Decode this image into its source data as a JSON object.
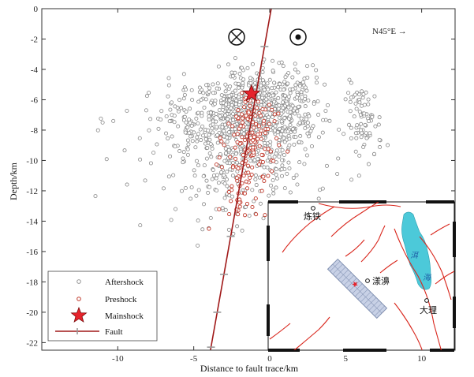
{
  "chart_data": {
    "type": "scatter",
    "xlabel": "Distance to fault trace/km",
    "ylabel": "Depth/km",
    "xlim": [
      -15,
      12.2
    ],
    "ylim": [
      -22.5,
      0
    ],
    "x_ticks": [
      -10,
      -5,
      0,
      5,
      10
    ],
    "x_tick_labels": [
      "-10",
      "-5",
      "0",
      "5",
      "10"
    ],
    "y_ticks": [
      0,
      -2,
      -4,
      -6,
      -8,
      -10,
      -12,
      -14,
      -16,
      -18,
      -20,
      -22
    ],
    "y_tick_labels": [
      "0",
      "-2",
      "-4",
      "-6",
      "-8",
      "-10",
      "-12",
      "-14",
      "-16",
      "-18",
      "-20",
      "-22"
    ],
    "direction_label": "N45°E →",
    "legend": {
      "position": "bottom-left",
      "entries": [
        "Aftershock",
        "Preshock",
        "Mainshock",
        "Fault"
      ]
    },
    "mainshock": {
      "x": -1.2,
      "y": -5.6
    },
    "fault_line": {
      "x": [
        0.1,
        -3.9
      ],
      "y": [
        0,
        -22.5
      ]
    },
    "fault_ticks_y": [
      -2.5,
      -15,
      -17.5,
      -20,
      -22.3
    ],
    "aftershock_clusters": [
      {
        "cx": -1.0,
        "cy": -7.5,
        "sx": 2.0,
        "sy": 1.7,
        "n": 620
      },
      {
        "cx": -2.5,
        "cy": -7.0,
        "sx": 1.2,
        "sy": 1.0,
        "n": 160
      },
      {
        "cx": 0.5,
        "cy": -6.2,
        "sx": 1.4,
        "sy": 1.2,
        "n": 160
      },
      {
        "cx": -5.8,
        "cy": -7.2,
        "sx": 1.2,
        "sy": 1.2,
        "n": 70
      },
      {
        "cx": 6.2,
        "cy": -7.6,
        "sx": 0.6,
        "sy": 1.3,
        "n": 80
      },
      {
        "cx": -2.2,
        "cy": -11.5,
        "sx": 2.0,
        "sy": 1.4,
        "n": 120
      },
      {
        "cx": -8.5,
        "cy": -9.5,
        "sx": 2.5,
        "sy": 2.0,
        "n": 22
      }
    ],
    "preshock_clusters": [
      {
        "cx": -1.2,
        "cy": -8.6,
        "sx": 0.8,
        "sy": 2.0,
        "n": 160
      },
      {
        "cx": -2.0,
        "cy": -11.8,
        "sx": 0.5,
        "sy": 1.2,
        "n": 30
      }
    ],
    "preshock_outlier": {
      "x": -4.0,
      "y": -14.5
    }
  },
  "inset_map": {
    "labels": [
      {
        "text": "炼铁"
      },
      {
        "text": "漾濞"
      },
      {
        "text": "大理"
      },
      {
        "text": "洱"
      },
      {
        "text": "海"
      }
    ]
  },
  "colors": {
    "aftershock": "#888888",
    "preshock": "#c0392b",
    "mainshock": "#e6232c",
    "fault": "#a01818",
    "fault_tick": "#999999",
    "map_fault": "#d9261c",
    "lake": "#4cc9d9",
    "projection_box": "#7f8fb0"
  },
  "symbols": {
    "into_page": "circle-cross-icon",
    "out_of_page": "circle-dot-icon"
  }
}
